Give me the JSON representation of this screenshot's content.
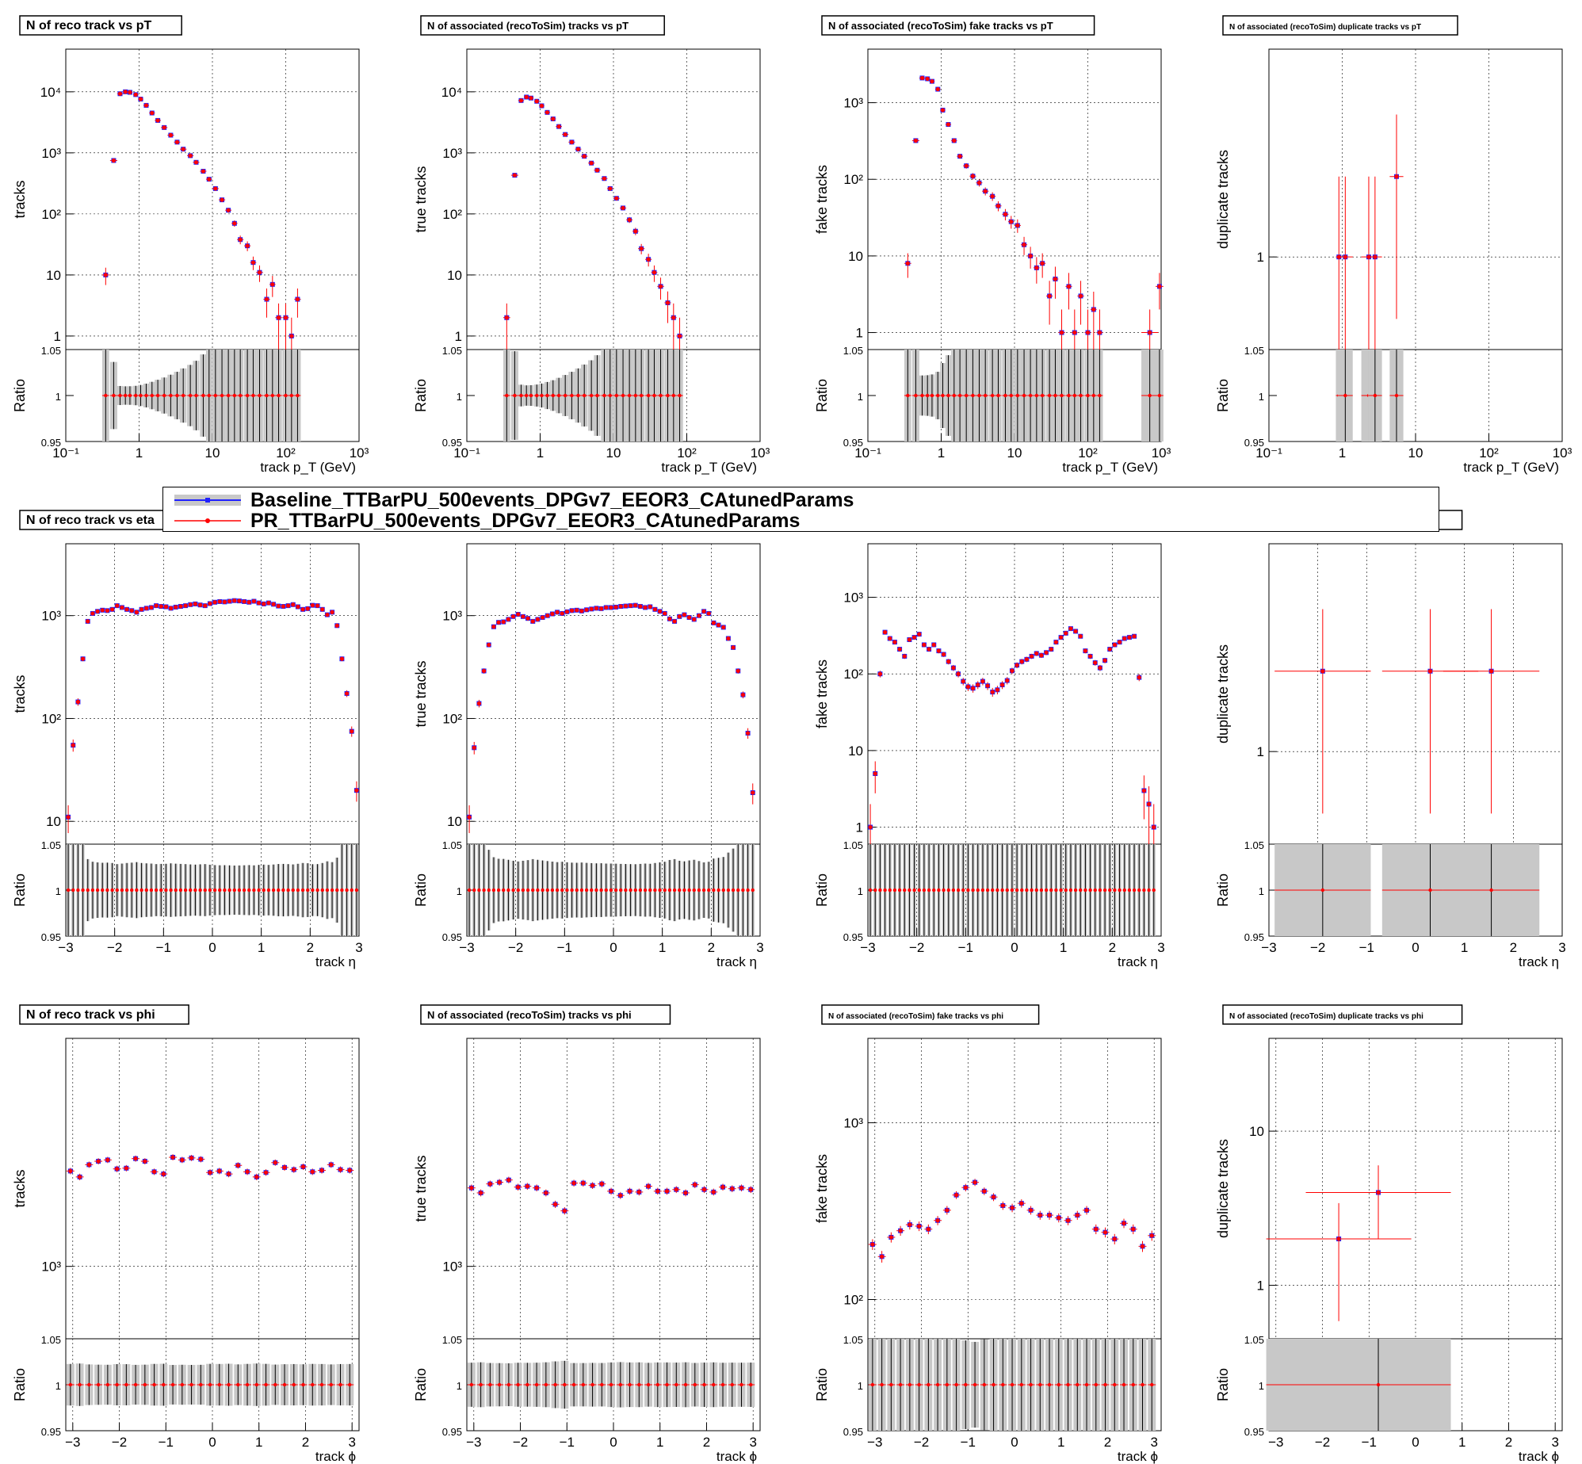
{
  "legend": {
    "baseline": "Baseline_TTBarPU_500events_DPGv7_EEOR3_CAtunedParams",
    "pr": "PR_TTBarPU_500events_DPGv7_EEOR3_CAtunedParams"
  },
  "colors": {
    "baseline": "#2020ff",
    "pr": "#ff0000",
    "band": "#c8c8c8"
  },
  "rows": {
    "pt": {
      "xlabel": "track p_T (GeV)",
      "xscale": "log",
      "xlim": [
        0.1,
        1000
      ],
      "xticks": [
        "10^-1",
        "1",
        "10",
        "10^2",
        "10^3"
      ]
    },
    "eta": {
      "xlabel": "track η",
      "xscale": "linear",
      "xlim": [
        -3,
        3
      ],
      "xticks": [
        "−3",
        "−2",
        "−1",
        "0",
        "1",
        "2",
        "3"
      ]
    },
    "phi": {
      "xlabel": "track ϕ",
      "xscale": "linear",
      "xlim": [
        -3.15,
        3.15
      ],
      "xticks": [
        "−3",
        "−2",
        "−1",
        "0",
        "1",
        "2",
        "3"
      ]
    }
  },
  "chart_data": [
    {
      "type": "scatter",
      "row": "pt",
      "title": "N of reco track vs pT",
      "ylabel": "tracks",
      "yscale": "log",
      "ylim": [
        0.6,
        50000
      ],
      "yticks": [
        "1",
        "10",
        "10^2",
        "10^3",
        "10^4"
      ],
      "ratio_ylabel": "Ratio",
      "ratio_ylim": [
        0.95,
        1.05
      ],
      "ratio_yticks": [
        "0.95",
        "1",
        "1.05"
      ],
      "x": [
        0.35,
        0.45,
        0.55,
        0.65,
        0.75,
        0.9,
        1.05,
        1.25,
        1.5,
        1.8,
        2.2,
        2.7,
        3.3,
        4,
        5,
        6,
        7.5,
        9,
        11,
        13.5,
        16.5,
        20,
        24,
        30,
        36,
        44,
        55,
        66,
        80,
        100,
        120,
        145,
        180,
        220,
        270,
        330,
        600,
        900
      ],
      "y": [
        10,
        750,
        9300,
        10000,
        9800,
        9000,
        7600,
        6000,
        4500,
        3400,
        2600,
        1950,
        1500,
        1150,
        900,
        700,
        500,
        370,
        260,
        170,
        115,
        70,
        38,
        30,
        16,
        11,
        4,
        7,
        2,
        2,
        1,
        4,
        0,
        0,
        0,
        0,
        0,
        0
      ]
    },
    {
      "type": "scatter",
      "row": "pt",
      "title": "N of associated (recoToSim) tracks vs pT",
      "ylabel": "true tracks",
      "yscale": "log",
      "ylim": [
        0.6,
        50000
      ],
      "yticks": [
        "1",
        "10",
        "10^2",
        "10^3",
        "10^4"
      ],
      "ratio_ylabel": "Ratio",
      "ratio_ylim": [
        0.95,
        1.05
      ],
      "ratio_yticks": [
        "0.95",
        "1",
        "1.05"
      ],
      "x": [
        0.35,
        0.45,
        0.55,
        0.65,
        0.75,
        0.9,
        1.05,
        1.25,
        1.5,
        1.8,
        2.2,
        2.7,
        3.3,
        4,
        5,
        6,
        7.5,
        9,
        11,
        13.5,
        16.5,
        20,
        24,
        30,
        36,
        44,
        55,
        66,
        80,
        100,
        120,
        145,
        180,
        220,
        270,
        330,
        400
      ],
      "y": [
        2,
        430,
        7200,
        8200,
        7900,
        7000,
        5900,
        4600,
        3600,
        2700,
        2000,
        1500,
        1150,
        880,
        680,
        520,
        380,
        260,
        180,
        125,
        80,
        52,
        27,
        18,
        11,
        6.5,
        3.5,
        2,
        1,
        0,
        0,
        0,
        0,
        0,
        0,
        0,
        0
      ]
    },
    {
      "type": "scatter",
      "row": "pt",
      "title": "N of associated (recoToSim) fake tracks vs pT",
      "ylabel": "fake tracks",
      "yscale": "log",
      "ylim": [
        0.6,
        5000
      ],
      "yticks": [
        "1",
        "10",
        "10^2",
        "10^3"
      ],
      "ratio_ylabel": "Ratio",
      "ratio_ylim": [
        0.95,
        1.05
      ],
      "ratio_yticks": [
        "0.95",
        "1",
        "1.05"
      ],
      "x": [
        0.35,
        0.45,
        0.55,
        0.65,
        0.75,
        0.9,
        1.05,
        1.25,
        1.5,
        1.8,
        2.2,
        2.7,
        3.3,
        4,
        5,
        6,
        7.5,
        9,
        11,
        13.5,
        16.5,
        20,
        24,
        30,
        36,
        44,
        55,
        66,
        80,
        100,
        120,
        145,
        180,
        220,
        270,
        330,
        700,
        950
      ],
      "y": [
        8,
        320,
        2100,
        2050,
        1900,
        1500,
        800,
        520,
        320,
        200,
        150,
        110,
        90,
        70,
        60,
        45,
        35,
        28,
        25,
        14,
        10,
        7,
        8,
        3,
        5,
        1,
        4,
        1,
        3,
        1,
        2,
        1,
        0,
        0,
        0,
        0,
        1,
        4
      ]
    },
    {
      "type": "scatter",
      "row": "pt",
      "title": "N of associated (recoToSim) duplicate tracks vs pT",
      "ylabel": "duplicate tracks",
      "yscale": "log",
      "ylim": [
        0.45,
        6
      ],
      "yticks": [
        "1"
      ],
      "ratio_ylabel": "Ratio",
      "ratio_ylim": [
        0.95,
        1.05
      ],
      "ratio_yticks": [
        "0.95",
        "1",
        "1.05"
      ],
      "x": [
        0.9,
        1.1,
        2.3,
        2.8,
        5.5
      ],
      "y": [
        1,
        1,
        1,
        1,
        2
      ]
    },
    {
      "type": "scatter",
      "row": "eta",
      "title": "N of reco track vs eta",
      "ylabel": "tracks",
      "yscale": "log",
      "ylim": [
        6,
        5000
      ],
      "yticks": [
        "10",
        "10^2",
        "10^3"
      ],
      "ratio_ylabel": "Ratio",
      "ratio_ylim": [
        0.95,
        1.05
      ],
      "ratio_yticks": [
        "0.95",
        "1",
        "1.05"
      ],
      "x": [
        -2.95,
        -2.85,
        -2.75,
        -2.65,
        -2.55,
        -2.45,
        -2.35,
        -2.25,
        -2.15,
        -2.05,
        -1.95,
        -1.85,
        -1.75,
        -1.65,
        -1.55,
        -1.45,
        -1.35,
        -1.25,
        -1.15,
        -1.05,
        -0.95,
        -0.85,
        -0.75,
        -0.65,
        -0.55,
        -0.45,
        -0.35,
        -0.25,
        -0.15,
        -0.05,
        0.05,
        0.15,
        0.25,
        0.35,
        0.45,
        0.55,
        0.65,
        0.75,
        0.85,
        0.95,
        1.05,
        1.15,
        1.25,
        1.35,
        1.45,
        1.55,
        1.65,
        1.75,
        1.85,
        1.95,
        2.05,
        2.15,
        2.25,
        2.35,
        2.45,
        2.55,
        2.65,
        2.75,
        2.85,
        2.95
      ],
      "y": [
        11,
        55,
        145,
        380,
        880,
        1050,
        1100,
        1130,
        1120,
        1150,
        1250,
        1200,
        1150,
        1120,
        1080,
        1150,
        1180,
        1200,
        1250,
        1230,
        1220,
        1180,
        1210,
        1230,
        1250,
        1280,
        1300,
        1270,
        1250,
        1310,
        1350,
        1370,
        1360,
        1380,
        1400,
        1390,
        1370,
        1350,
        1380,
        1330,
        1300,
        1330,
        1290,
        1240,
        1230,
        1250,
        1280,
        1220,
        1150,
        1170,
        1260,
        1250,
        1150,
        1020,
        1080,
        800,
        380,
        175,
        75,
        20
      ]
    },
    {
      "type": "scatter",
      "row": "eta",
      "title": "N of associated (recoToSim) tracks vs eta",
      "ylabel": "true tracks",
      "yscale": "log",
      "ylim": [
        6,
        5000
      ],
      "yticks": [
        "10",
        "10^2",
        "10^3"
      ],
      "ratio_ylabel": "Ratio",
      "ratio_ylim": [
        0.95,
        1.05
      ],
      "ratio_yticks": [
        "0.95",
        "1",
        "1.05"
      ],
      "x": [
        -2.95,
        -2.85,
        -2.75,
        -2.65,
        -2.55,
        -2.45,
        -2.35,
        -2.25,
        -2.15,
        -2.05,
        -1.95,
        -1.85,
        -1.75,
        -1.65,
        -1.55,
        -1.45,
        -1.35,
        -1.25,
        -1.15,
        -1.05,
        -0.95,
        -0.85,
        -0.75,
        -0.65,
        -0.55,
        -0.45,
        -0.35,
        -0.25,
        -0.15,
        -0.05,
        0.05,
        0.15,
        0.25,
        0.35,
        0.45,
        0.55,
        0.65,
        0.75,
        0.85,
        0.95,
        1.05,
        1.15,
        1.25,
        1.35,
        1.45,
        1.55,
        1.65,
        1.75,
        1.85,
        1.95,
        2.05,
        2.15,
        2.25,
        2.35,
        2.45,
        2.55,
        2.65,
        2.75,
        2.85,
        2.95
      ],
      "y": [
        11,
        52,
        140,
        290,
        520,
        780,
        860,
        870,
        920,
        980,
        1030,
        980,
        940,
        880,
        920,
        960,
        1000,
        1040,
        1080,
        1050,
        1090,
        1120,
        1130,
        1110,
        1140,
        1160,
        1180,
        1170,
        1200,
        1200,
        1210,
        1230,
        1240,
        1250,
        1260,
        1230,
        1200,
        1220,
        1150,
        1100,
        1050,
        930,
        880,
        980,
        1020,
        960,
        920,
        1000,
        1100,
        1050,
        850,
        810,
        770,
        600,
        490,
        290,
        170,
        72,
        19,
        0
      ]
    },
    {
      "type": "scatter",
      "row": "eta",
      "title": "N of associated (recoToSim) fake tracks vs eta",
      "ylabel": "fake tracks",
      "yscale": "log",
      "ylim": [
        0.6,
        5000
      ],
      "yticks": [
        "1",
        "10",
        "10^2",
        "10^3"
      ],
      "ratio_ylabel": "Ratio",
      "ratio_ylim": [
        0.95,
        1.05
      ],
      "ratio_yticks": [
        "0.95",
        "1",
        "1.05"
      ],
      "x": [
        -2.95,
        -2.85,
        -2.75,
        -2.65,
        -2.55,
        -2.45,
        -2.35,
        -2.25,
        -2.15,
        -2.05,
        -1.95,
        -1.85,
        -1.75,
        -1.65,
        -1.55,
        -1.45,
        -1.35,
        -1.25,
        -1.15,
        -1.05,
        -0.95,
        -0.85,
        -0.75,
        -0.65,
        -0.55,
        -0.45,
        -0.35,
        -0.25,
        -0.15,
        -0.05,
        0.05,
        0.15,
        0.25,
        0.35,
        0.45,
        0.55,
        0.65,
        0.75,
        0.85,
        0.95,
        1.05,
        1.15,
        1.25,
        1.35,
        1.45,
        1.55,
        1.65,
        1.75,
        1.85,
        1.95,
        2.05,
        2.15,
        2.25,
        2.35,
        2.45,
        2.55,
        2.65,
        2.75,
        2.85,
        2.95
      ],
      "y": [
        1,
        5,
        100,
        350,
        290,
        260,
        210,
        170,
        280,
        300,
        330,
        240,
        210,
        240,
        200,
        180,
        145,
        120,
        100,
        80,
        68,
        65,
        72,
        80,
        70,
        58,
        62,
        72,
        82,
        110,
        130,
        145,
        155,
        170,
        185,
        175,
        190,
        210,
        260,
        300,
        340,
        390,
        360,
        310,
        200,
        170,
        140,
        120,
        150,
        210,
        240,
        260,
        290,
        300,
        310,
        90,
        3,
        2,
        1,
        0
      ]
    },
    {
      "type": "scatter",
      "row": "eta",
      "title": "N of associated (recoToSim) duplicate tracks vs eta",
      "ylabel": "duplicate tracks",
      "yscale": "log",
      "ylim": [
        0.45,
        6
      ],
      "yticks": [
        "1"
      ],
      "ratio_ylabel": "Ratio",
      "ratio_ylim": [
        0.95,
        1.05
      ],
      "ratio_yticks": [
        "0.95",
        "1",
        "1.05"
      ],
      "x": [
        -1.9,
        0.3,
        1.55
      ],
      "y": [
        2,
        2,
        2
      ]
    },
    {
      "type": "scatter",
      "row": "phi",
      "title": "N of reco track vs phi",
      "ylabel": "tracks",
      "yscale": "log",
      "ylim": [
        600,
        5000
      ],
      "yticks": [
        "10^3"
      ],
      "ratio_ylabel": "Ratio",
      "ratio_ylim": [
        0.95,
        1.05
      ],
      "ratio_yticks": [
        "0.95",
        "1",
        "1.05"
      ],
      "x": [
        -3.05,
        -2.85,
        -2.65,
        -2.45,
        -2.25,
        -2.05,
        -1.85,
        -1.65,
        -1.45,
        -1.25,
        -1.05,
        -0.85,
        -0.65,
        -0.45,
        -0.25,
        -0.05,
        0.15,
        0.35,
        0.55,
        0.75,
        0.95,
        1.15,
        1.35,
        1.55,
        1.75,
        1.95,
        2.15,
        2.35,
        2.55,
        2.75,
        2.95
      ],
      "y": [
        1960,
        1880,
        2050,
        2100,
        2120,
        1990,
        2000,
        2140,
        2100,
        1950,
        1920,
        2160,
        2120,
        2150,
        2130,
        1940,
        1960,
        1920,
        2040,
        1950,
        1880,
        1940,
        2080,
        2010,
        1980,
        2020,
        1950,
        1970,
        2050,
        1980,
        1970
      ]
    },
    {
      "type": "scatter",
      "row": "phi",
      "title": "N of associated (recoToSim) tracks vs phi",
      "ylabel": "true tracks",
      "yscale": "log",
      "ylim": [
        600,
        5000
      ],
      "yticks": [
        "10^3"
      ],
      "ratio_ylabel": "Ratio",
      "ratio_ylim": [
        0.95,
        1.05
      ],
      "ratio_yticks": [
        "0.95",
        "1",
        "1.05"
      ],
      "x": [
        -3.05,
        -2.85,
        -2.65,
        -2.45,
        -2.25,
        -2.05,
        -1.85,
        -1.65,
        -1.45,
        -1.25,
        -1.05,
        -0.85,
        -0.65,
        -0.45,
        -0.25,
        -0.05,
        0.15,
        0.35,
        0.55,
        0.75,
        0.95,
        1.15,
        1.35,
        1.55,
        1.75,
        1.95,
        2.15,
        2.35,
        2.55,
        2.75,
        2.95
      ],
      "y": [
        1740,
        1680,
        1790,
        1810,
        1840,
        1750,
        1760,
        1740,
        1680,
        1550,
        1480,
        1800,
        1800,
        1770,
        1790,
        1700,
        1650,
        1700,
        1690,
        1760,
        1700,
        1700,
        1720,
        1680,
        1780,
        1720,
        1690,
        1750,
        1730,
        1740,
        1720
      ]
    },
    {
      "type": "scatter",
      "row": "phi",
      "title": "N of associated (recoToSim) fake tracks vs phi",
      "ylabel": "fake tracks",
      "yscale": "log",
      "ylim": [
        60,
        3000
      ],
      "yticks": [
        "10^2",
        "10^3"
      ],
      "ratio_ylabel": "Ratio",
      "ratio_ylim": [
        0.95,
        1.05
      ],
      "ratio_yticks": [
        "0.95",
        "1",
        "1.05"
      ],
      "x": [
        -3.05,
        -2.85,
        -2.65,
        -2.45,
        -2.25,
        -2.05,
        -1.85,
        -1.65,
        -1.45,
        -1.25,
        -1.05,
        -0.85,
        -0.65,
        -0.45,
        -0.25,
        -0.05,
        0.15,
        0.35,
        0.55,
        0.75,
        0.95,
        1.15,
        1.35,
        1.55,
        1.75,
        1.95,
        2.15,
        2.35,
        2.55,
        2.75,
        2.95
      ],
      "y": [
        205,
        175,
        225,
        245,
        265,
        260,
        250,
        280,
        320,
        390,
        430,
        460,
        410,
        380,
        340,
        330,
        350,
        320,
        300,
        300,
        290,
        280,
        300,
        320,
        250,
        240,
        220,
        270,
        250,
        200,
        230
      ]
    },
    {
      "type": "scatter",
      "row": "phi",
      "title": "N of associated (recoToSim) duplicate tracks vs phi",
      "ylabel": "duplicate tracks",
      "yscale": "log",
      "ylim": [
        0.45,
        40
      ],
      "yticks": [
        "1",
        "10"
      ],
      "ratio_ylabel": "Ratio",
      "ratio_ylim": [
        0.95,
        1.05
      ],
      "ratio_yticks": [
        "0.95",
        "1",
        "1.05"
      ],
      "x": [
        -1.65,
        -0.8
      ],
      "y": [
        2,
        4
      ]
    }
  ]
}
